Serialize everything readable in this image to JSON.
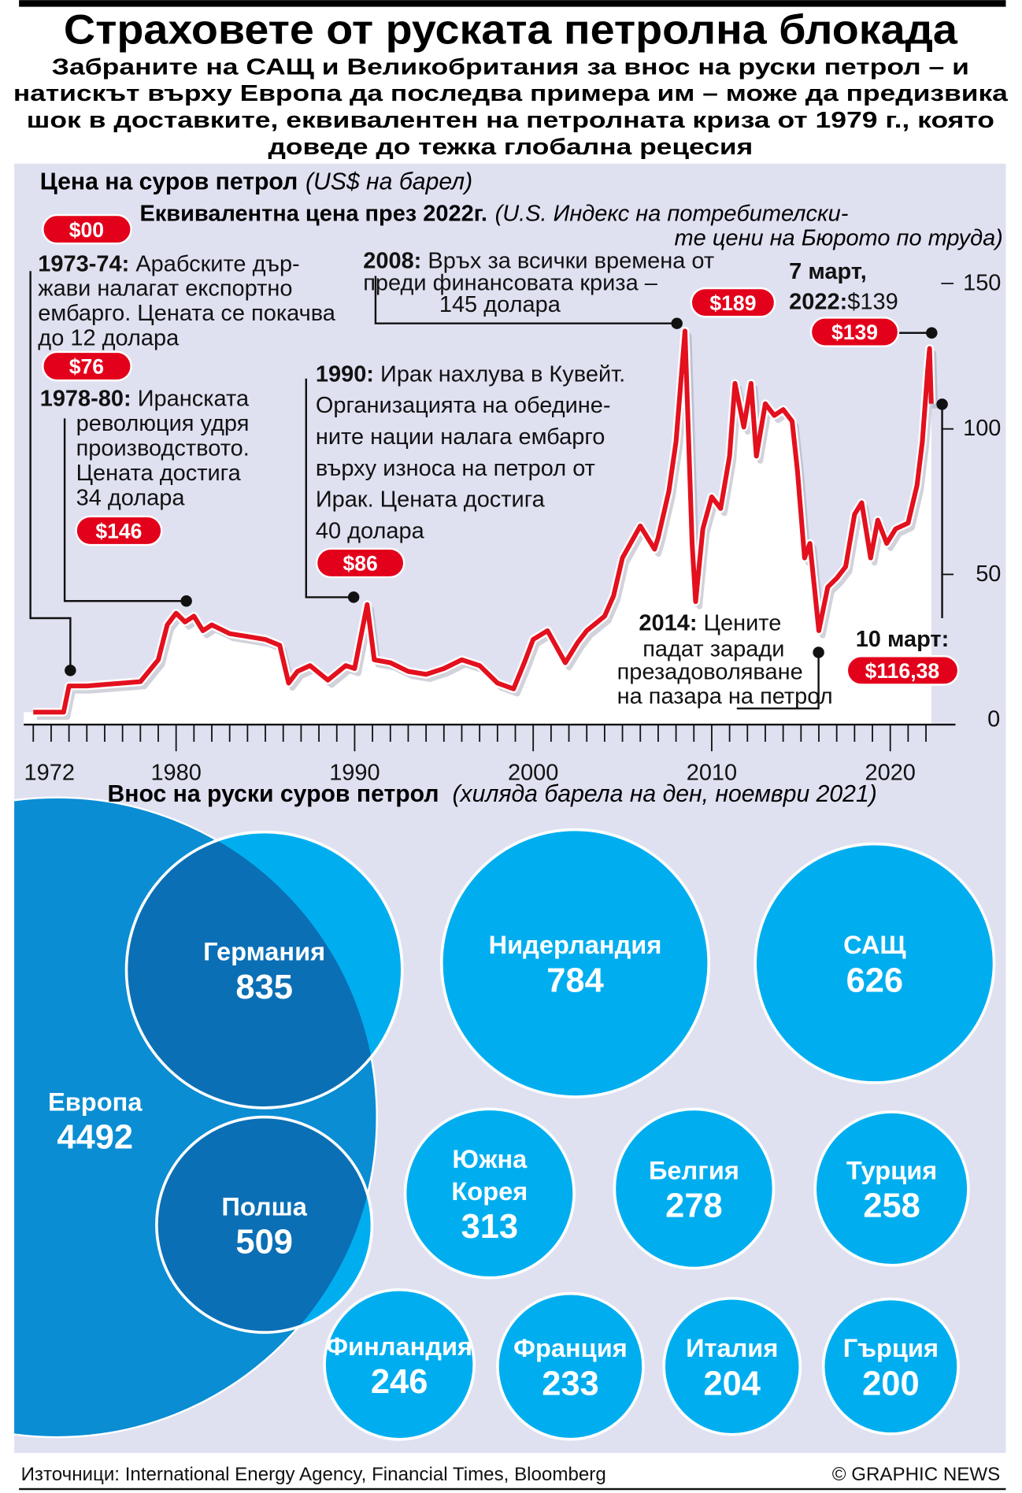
{
  "header": {
    "title": "Страховете от руската петролна блокада",
    "subtitle_lines": [
      "Забраните на САЩ и Великобритания за внос на руски петрол – и",
      "натискът върху Европа да последва примера им – може да предизвика",
      "шок в доставките, еквивалентен на петролната криза от 1979 г., която",
      "доведе до тежка глобална рецесия"
    ]
  },
  "price_chart": {
    "title": "Цена на суров петрол",
    "unit": "(US$ на барел)",
    "equiv_pill": "$00",
    "equiv_label": "Еквивалентна цена през  2022г.",
    "equiv_note_lines": [
      "(U.S. Индекс на потребителски-",
      "те цени на Бюрото по труда)"
    ],
    "annotations": {
      "a1973": {
        "bold": "1973-74:",
        "lines": [
          " Арабските дър-",
          "жави налагат експортно",
          "ембарго. Цената се покачва",
          "до 12 долара"
        ],
        "pill": "$76"
      },
      "a1978": {
        "bold": "1978-80:",
        "lines": [
          " Иранската",
          "революция удря",
          "производството.",
          "Цената достига",
          "34 долара"
        ],
        "pill": "$146"
      },
      "a1990": {
        "bold": "1990:",
        "lines": [
          " Ирак нахлува в Кувейт.",
          "Организацията на обедине-",
          "ните нации налага ембарго",
          "върху износа на петрол от",
          "Ирак. Цената достига",
          "40 долара"
        ],
        "pill": "$86"
      },
      "a2008": {
        "bold": "2008:",
        "lines": [
          " Връх за всички времена от",
          "преди финансовата криза –",
          "145 долара"
        ],
        "pill": "$189"
      },
      "a2022": {
        "bold1": "7 март,",
        "bold2": "2022:",
        "value": "$139",
        "pill": "$139"
      },
      "a2014": {
        "bold": "2014:",
        "lines": [
          " Цените",
          "падат заради",
          "презадоволяване",
          "на пазара на петрол"
        ]
      },
      "a10mar": {
        "bold": "10 март:",
        "pill": "$116,38"
      }
    }
  },
  "imports": {
    "title": "Внос на руски суров петрол",
    "unit": "(хиляда барела на ден, ноември 2021)"
  },
  "footer": {
    "sources": "Източници: International Energy Agency, Financial Times, Bloomberg",
    "credit": "© GRAPHIC NEWS"
  },
  "colors": {
    "line": "#e3101e",
    "pill": "#e3001b",
    "panel": "#dfe1f1",
    "europe": "#0a8dd3",
    "country": "#00aeef",
    "overlap": "#0b6fb5"
  },
  "chart_data": [
    {
      "type": "line",
      "title": "Цена на суров петрол",
      "ylabel": "US$ на барел",
      "ylim": [
        0,
        150
      ],
      "yticks": [
        "0",
        "50",
        "100",
        "150"
      ],
      "xlim": [
        1972,
        2022.3
      ],
      "xticks": [
        "1972",
        "1980",
        "1990",
        "2000",
        "2010",
        "2020"
      ],
      "grid": false,
      "points": [
        [
          1972,
          2
        ],
        [
          1973.7,
          2
        ],
        [
          1974,
          11
        ],
        [
          1975,
          11
        ],
        [
          1976,
          11.5
        ],
        [
          1977,
          12
        ],
        [
          1978,
          12.5
        ],
        [
          1979,
          20
        ],
        [
          1979.5,
          32
        ],
        [
          1980,
          36
        ],
        [
          1980.5,
          33
        ],
        [
          1981,
          35
        ],
        [
          1981.5,
          30
        ],
        [
          1982,
          32
        ],
        [
          1983,
          29
        ],
        [
          1984,
          28
        ],
        [
          1985,
          27
        ],
        [
          1985.8,
          25
        ],
        [
          1986.3,
          12
        ],
        [
          1986.8,
          16
        ],
        [
          1987.5,
          18
        ],
        [
          1988.5,
          13
        ],
        [
          1989.5,
          18
        ],
        [
          1990,
          17
        ],
        [
          1990.7,
          39
        ],
        [
          1991.1,
          20
        ],
        [
          1992,
          19
        ],
        [
          1993,
          16
        ],
        [
          1994,
          15
        ],
        [
          1995,
          17
        ],
        [
          1996,
          20
        ],
        [
          1997,
          18
        ],
        [
          1998,
          12
        ],
        [
          1998.9,
          10
        ],
        [
          1999.5,
          19
        ],
        [
          2000,
          27
        ],
        [
          2000.8,
          30
        ],
        [
          2001.8,
          19
        ],
        [
          2002.5,
          26
        ],
        [
          2003,
          30
        ],
        [
          2004,
          35
        ],
        [
          2004.5,
          42
        ],
        [
          2005,
          55
        ],
        [
          2006,
          66
        ],
        [
          2006.8,
          58
        ],
        [
          2007,
          62
        ],
        [
          2007.6,
          78
        ],
        [
          2008,
          95
        ],
        [
          2008.5,
          133
        ],
        [
          2008.9,
          60
        ],
        [
          2009.1,
          40
        ],
        [
          2009.5,
          65
        ],
        [
          2010,
          76
        ],
        [
          2010.5,
          72
        ],
        [
          2011,
          90
        ],
        [
          2011.3,
          115
        ],
        [
          2011.8,
          100
        ],
        [
          2012.2,
          115
        ],
        [
          2012.5,
          90
        ],
        [
          2013,
          108
        ],
        [
          2013.5,
          104
        ],
        [
          2014,
          106
        ],
        [
          2014.5,
          102
        ],
        [
          2014.8,
          85
        ],
        [
          2015.2,
          55
        ],
        [
          2015.5,
          60
        ],
        [
          2016,
          30
        ],
        [
          2016.5,
          45
        ],
        [
          2017,
          48
        ],
        [
          2017.5,
          52
        ],
        [
          2018,
          70
        ],
        [
          2018.4,
          74
        ],
        [
          2018.9,
          55
        ],
        [
          2019.3,
          68
        ],
        [
          2019.8,
          60
        ],
        [
          2020.3,
          65
        ],
        [
          2021,
          67
        ],
        [
          2021.5,
          80
        ],
        [
          2021.8,
          95
        ],
        [
          2022.1,
          120
        ],
        [
          2022.2,
          127
        ],
        [
          2022.3,
          108
        ]
      ],
      "markers": [
        {
          "id": "a1973",
          "x": 1973.8,
          "y": 13
        },
        {
          "id": "a1978",
          "x": 1980.3,
          "y": 40
        },
        {
          "id": "a1990",
          "x": 1990.2,
          "y": 41
        },
        {
          "id": "a2008",
          "x": 2008.3,
          "y": 136
        },
        {
          "id": "a2022",
          "x": 2022.3,
          "y": 132
        },
        {
          "id": "a10mar",
          "x": 2022.9,
          "y": 108
        },
        {
          "id": "a2014",
          "x": 2016.2,
          "y": 23
        }
      ]
    },
    {
      "type": "bubble",
      "title": "Внос на руски суров петрол",
      "unit": "хиляда барела на ден, ноември 2021",
      "items": [
        {
          "name": "Европа",
          "value": 4492,
          "group": "total"
        },
        {
          "name": "Германия",
          "value": 835,
          "group": "europe"
        },
        {
          "name": "Полша",
          "value": 509,
          "group": "europe"
        },
        {
          "name": "Нидерландия",
          "value": 784,
          "group": "other"
        },
        {
          "name": "САЩ",
          "value": 626,
          "group": "other"
        },
        {
          "name": "Южна Корея",
          "value": 313,
          "group": "other"
        },
        {
          "name": "Белгия",
          "value": 278,
          "group": "other"
        },
        {
          "name": "Турция",
          "value": 258,
          "group": "other"
        },
        {
          "name": "Финландия",
          "value": 246,
          "group": "other"
        },
        {
          "name": "Франция",
          "value": 233,
          "group": "other"
        },
        {
          "name": "Италия",
          "value": 204,
          "group": "other"
        },
        {
          "name": "Гърция",
          "value": 200,
          "group": "other"
        }
      ]
    }
  ]
}
